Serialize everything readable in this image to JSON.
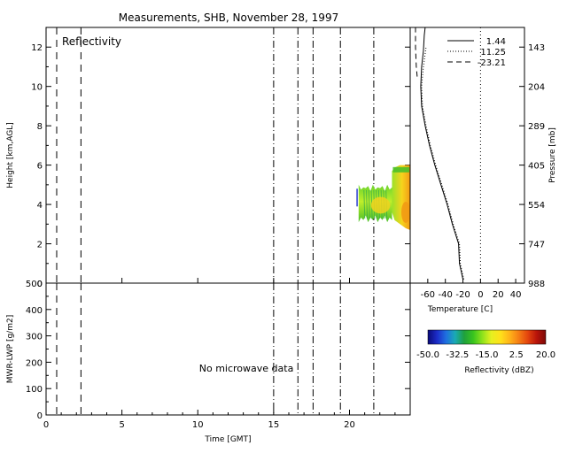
{
  "title": "Measurements, SHB, November 28, 1997",
  "colors": {
    "background": "#ffffff",
    "axes": "#000000",
    "echo_low": "#2fa84a",
    "echo_mid": "#9bea2b",
    "echo_high": "#f0d21e",
    "echo_peak": "#f29a14"
  },
  "chart_data": [
    {
      "id": "reflectivity_panel",
      "type": "heatmap",
      "panel_label": "Reflectivity",
      "xlabel": "",
      "ylabel": "Height [km,AGL]",
      "xlim": [
        0,
        24
      ],
      "ylim": [
        0,
        13
      ],
      "y_ticks": [
        0,
        2,
        4,
        6,
        8,
        10,
        12
      ],
      "x_ticks": [
        0,
        5,
        10,
        15,
        20
      ],
      "dashed_lines_x": [
        0.7,
        2.3
      ],
      "dashdot_lines_x": [
        15.0,
        16.6,
        17.6,
        19.4,
        21.6
      ],
      "echo_regions": [
        {
          "x_start": 20.6,
          "x_end": 22.8,
          "y_bottom": 3.1,
          "y_top": 5.0,
          "peak": "medium"
        },
        {
          "x_start": 22.8,
          "x_end": 24.0,
          "y_bottom": 2.7,
          "y_top": 6.0,
          "peak": "high"
        }
      ],
      "artifacts": [
        {
          "x": 20.5,
          "y_bottom": 3.9,
          "y_top": 4.8,
          "color": "#2b3fcf"
        }
      ]
    },
    {
      "id": "temperature_profile",
      "type": "line",
      "xlabel": "Temperature [C]",
      "ylabel": "Pressure [mb]",
      "xlim": [
        -80,
        50
      ],
      "x_ticks": [
        -60,
        -40,
        -20,
        0,
        20,
        40
      ],
      "height_ticks_km": [
        0,
        2,
        4,
        6,
        8,
        10,
        12
      ],
      "pressure_labels": [
        "988",
        "747",
        "554",
        "405",
        "289",
        "204",
        "143"
      ],
      "zero_line": 0,
      "series": [
        {
          "name": "1.44",
          "style": "solid",
          "height_km": [
            0.2,
            0.6,
            1.0,
            2.0,
            3.0,
            4.0,
            5.0,
            6.0,
            7.0,
            8.0,
            9.0,
            10.0,
            11.0,
            11.8,
            12.6,
            13.0
          ],
          "temperature": [
            -20,
            -22,
            -24,
            -25,
            -32,
            -38,
            -45,
            -52,
            -58,
            -63,
            -67,
            -68,
            -67,
            -65,
            -64,
            -63
          ]
        },
        {
          "name": "11.25",
          "style": "dotted",
          "height_km": [
            0.2,
            0.6,
            1.0,
            2.0,
            3.0,
            4.0,
            5.0,
            6.0,
            7.0,
            8.0,
            9.0,
            10.0,
            11.0,
            12.0
          ],
          "temperature": [
            -19,
            -21,
            -23,
            -24,
            -31,
            -37,
            -44,
            -51,
            -57,
            -62,
            -66,
            -67,
            -65,
            -62
          ]
        },
        {
          "name": "-23.21",
          "style": "dashed",
          "height_km": [
            10.5,
            11.0,
            12.0,
            13.0
          ],
          "temperature": [
            -72,
            -73,
            -74,
            -74
          ]
        }
      ]
    },
    {
      "id": "lwp_panel",
      "type": "line",
      "xlabel": "Time [GMT]",
      "ylabel": "MWR-LWP [g/m2]",
      "xlim": [
        0,
        24
      ],
      "ylim": [
        0,
        500
      ],
      "x_ticks": [
        0,
        5,
        10,
        15,
        20
      ],
      "y_ticks": [
        0,
        100,
        200,
        300,
        400,
        500
      ],
      "dashed_lines_x": [
        0.7,
        2.3
      ],
      "dashdot_lines_x": [
        15.0,
        16.6,
        17.6,
        19.4,
        21.6
      ],
      "annotation": "No microwave data"
    },
    {
      "id": "colorbar",
      "type": "heatmap",
      "xlabel": "Reflectivity (dBZ)",
      "range": [
        -50,
        20
      ],
      "tick_labels": [
        "-50.0",
        "-32.5",
        "-15.0",
        "2.5",
        "20.0"
      ],
      "tick_values": [
        -50,
        -32.5,
        -15,
        2.5,
        20
      ],
      "stops": [
        "#0a0a78",
        "#1c2cc8",
        "#1f6fe0",
        "#1aaab4",
        "#1fa03c",
        "#39c41e",
        "#8ee21c",
        "#e6f020",
        "#ffe11a",
        "#ffb419",
        "#f57f14",
        "#e4460e",
        "#b8140a",
        "#7d0a08"
      ]
    }
  ]
}
